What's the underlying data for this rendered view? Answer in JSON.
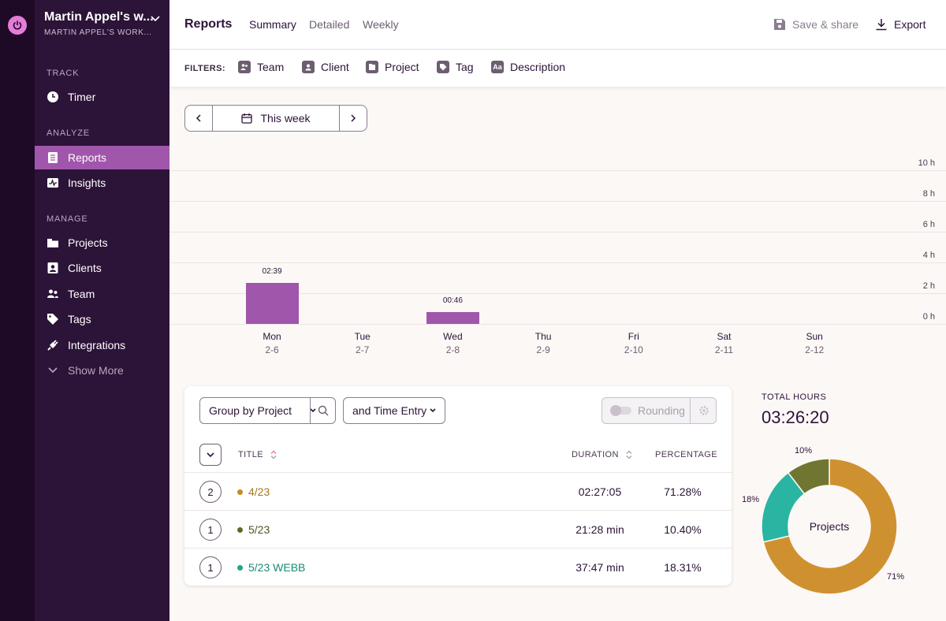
{
  "workspace": {
    "name": "Martin Appel's w...",
    "subtitle": "MARTIN APPEL'S WORK..."
  },
  "sidebar": {
    "sections": {
      "track": "TRACK",
      "analyze": "ANALYZE",
      "manage": "MANAGE"
    },
    "items": {
      "timer": "Timer",
      "reports": "Reports",
      "insights": "Insights",
      "projects": "Projects",
      "clients": "Clients",
      "team": "Team",
      "tags": "Tags",
      "integrations": "Integrations",
      "show_more": "Show More"
    }
  },
  "header": {
    "title": "Reports",
    "tabs": {
      "summary": "Summary",
      "detailed": "Detailed",
      "weekly": "Weekly"
    },
    "save_share": "Save & share",
    "export": "Export"
  },
  "filters": {
    "label": "FILTERS:",
    "team": "Team",
    "client": "Client",
    "project": "Project",
    "tag": "Tag",
    "description": "Description"
  },
  "date_picker": {
    "label": "This week"
  },
  "chart_data": {
    "type": "bar",
    "categories": [
      "Mon",
      "Tue",
      "Wed",
      "Thu",
      "Fri",
      "Sat",
      "Sun"
    ],
    "dates": [
      "2-6",
      "2-7",
      "2-8",
      "2-9",
      "2-10",
      "2-11",
      "2-12"
    ],
    "values": [
      2.65,
      0,
      0.7667,
      0,
      0,
      0,
      0
    ],
    "bar_labels": [
      "02:39",
      "",
      "00:46",
      "",
      "",
      "",
      ""
    ],
    "y_ticks": [
      "0 h",
      "2 h",
      "4 h",
      "6 h",
      "8 h",
      "10 h"
    ],
    "ylim": [
      0,
      10
    ],
    "bar_color": "#a056ab",
    "grid": true
  },
  "table": {
    "group_by": "Group by Project",
    "and_by": "and Time Entry",
    "rounding": "Rounding",
    "headers": {
      "title": "TITLE",
      "duration": "DURATION",
      "percentage": "PERCENTAGE"
    },
    "rows": [
      {
        "count": "2",
        "title": "4/23",
        "color": "#c78a22",
        "duration": "02:27:05",
        "percentage": "71.28%"
      },
      {
        "count": "1",
        "title": "5/23",
        "color": "#5b6b25",
        "duration": "21:28 min",
        "percentage": "10.40%"
      },
      {
        "count": "1",
        "title": "5/23 WEBB",
        "color": "#1fa58a",
        "duration": "37:47 min",
        "percentage": "18.31%"
      }
    ]
  },
  "totals": {
    "label": "TOTAL HOURS",
    "value": "03:26:20",
    "donut_center": "Projects",
    "slices": [
      {
        "label": "71%",
        "value": 71.28,
        "color": "#cf9130"
      },
      {
        "label": "18%",
        "value": 18.31,
        "color": "#2ab5a2"
      },
      {
        "label": "10%",
        "value": 10.4,
        "color": "#707632"
      }
    ]
  }
}
